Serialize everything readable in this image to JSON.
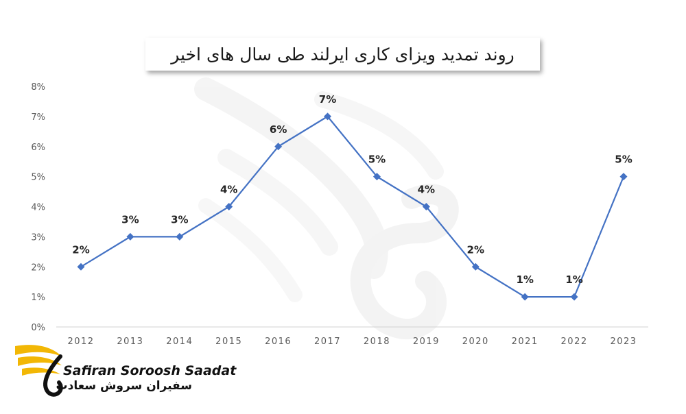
{
  "chart_data": {
    "type": "line",
    "title": "روند تمدید ویزای کاری ایرلند طی سال های اخیر",
    "x": [
      "2012",
      "2013",
      "2014",
      "2015",
      "2016",
      "2017",
      "2018",
      "2019",
      "2020",
      "2021",
      "2022",
      "2023"
    ],
    "series": [
      {
        "values": [
          2,
          3,
          3,
          4,
          6,
          7,
          5,
          4,
          2,
          1,
          1,
          5
        ],
        "color": "#4472C4",
        "labels": [
          "2%",
          "3%",
          "3%",
          "4%",
          "6%",
          "7%",
          "5%",
          "4%",
          "2%",
          "1%",
          "1%",
          "5%"
        ]
      }
    ],
    "ylim": [
      0,
      8
    ],
    "yticks": [
      "0%",
      "1%",
      "2%",
      "3%",
      "4%",
      "5%",
      "6%",
      "7%",
      "8%"
    ],
    "grid": false,
    "marker": "diamond"
  },
  "logo": {
    "latin": "Safiran Soroosh Saadat",
    "persian": "سفیران سروش سعادت",
    "accent_color": "#F2B705"
  }
}
